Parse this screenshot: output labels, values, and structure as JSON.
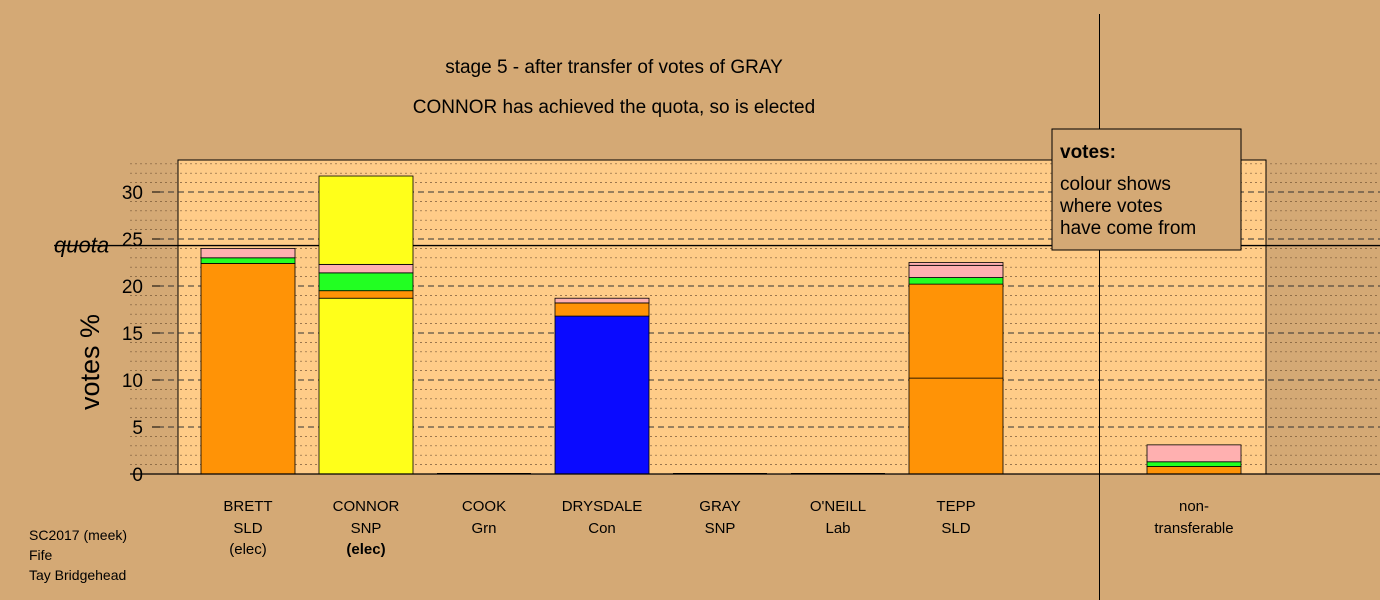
{
  "chart_data": {
    "type": "bar",
    "stacked": true,
    "title": "stage 5 - after transfer of votes of GRAY",
    "subtitle": "CONNOR has achieved the quota, so is elected",
    "ylabel": "votes %",
    "ylim": [
      0,
      33.3
    ],
    "yticks": [
      0,
      5,
      10,
      15,
      20,
      25,
      30
    ],
    "quota": {
      "label": "quota",
      "value": 24.3
    },
    "candidates": [
      {
        "name": "BRETT",
        "party": "SLD",
        "status": "(elec)",
        "status_bold": false,
        "segments": [
          {
            "color": "#ff9306",
            "value": 22.4
          },
          {
            "color": "#22ff22",
            "value": 0.6
          },
          {
            "color": "#ffb0b0",
            "value": 1.0
          }
        ]
      },
      {
        "name": "CONNOR",
        "party": "SNP",
        "status": "(elec)",
        "status_bold": true,
        "segments": [
          {
            "color": "#ffff1a",
            "value": 18.7
          },
          {
            "color": "#ff9306",
            "value": 0.8
          },
          {
            "color": "#22ff22",
            "value": 1.9
          },
          {
            "color": "#ffb0b0",
            "value": 0.9
          },
          {
            "color": "#ffff1a",
            "value": 9.4
          }
        ]
      },
      {
        "name": "COOK",
        "party": "Grn",
        "status": "",
        "status_bold": false,
        "segments": []
      },
      {
        "name": "DRYSDALE",
        "party": "Con",
        "status": "",
        "status_bold": false,
        "segments": [
          {
            "color": "#0a0aff",
            "value": 16.8
          },
          {
            "color": "#ff9306",
            "value": 1.4
          },
          {
            "color": "#ffb0b0",
            "value": 0.5
          }
        ]
      },
      {
        "name": "GRAY",
        "party": "SNP",
        "status": "",
        "status_bold": false,
        "segments": []
      },
      {
        "name": "O'NEILL",
        "party": "Lab",
        "status": "",
        "status_bold": false,
        "segments": []
      },
      {
        "name": "TEPP",
        "party": "SLD",
        "status": "",
        "status_bold": false,
        "segments": [
          {
            "color": "#ff9306",
            "value": 10.2
          },
          {
            "color": "#ff9306",
            "value": 10.0
          },
          {
            "color": "#22ff22",
            "value": 0.7
          },
          {
            "color": "#ffb0b0",
            "value": 1.3
          },
          {
            "color": "#ffb0b0",
            "value": 0.3
          }
        ]
      }
    ],
    "nontransferable": {
      "label_line1": "non-",
      "label_line2": "transferable",
      "segments": [
        {
          "color": "#ff9306",
          "value": 0.8
        },
        {
          "color": "#22ff22",
          "value": 0.5
        },
        {
          "color": "#ffb0b0",
          "value": 1.8
        }
      ]
    },
    "legend": {
      "title": "votes:",
      "lines": [
        "colour shows",
        "where votes",
        "have come from"
      ],
      "placement": "top-right"
    }
  },
  "footer": {
    "line1": "SC2017 (meek)",
    "line2": "Fife",
    "line3": "Tay Bridgehead"
  },
  "colors": {
    "background": "#d4a975",
    "plot_area": "#ffcc88"
  }
}
